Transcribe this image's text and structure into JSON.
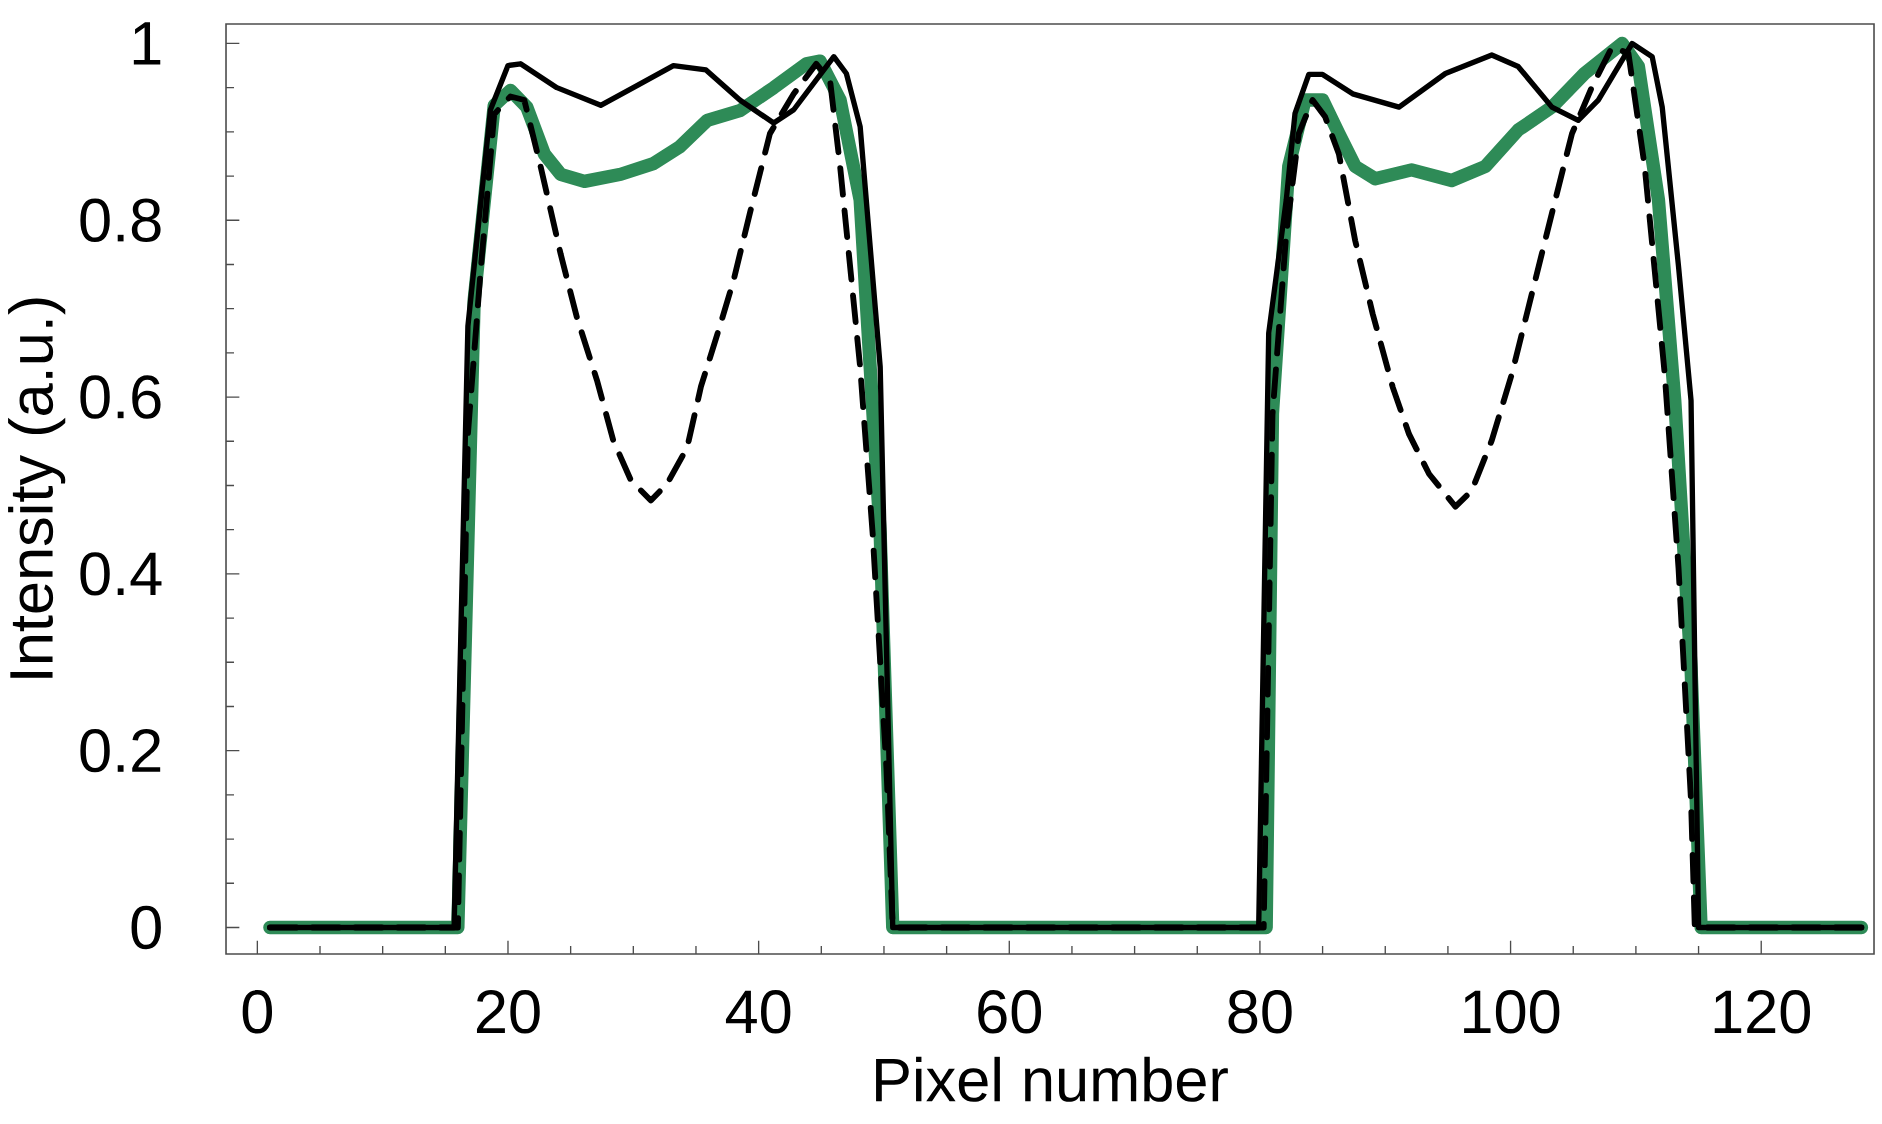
{
  "chart_data": {
    "type": "line",
    "xlabel": "Pixel number",
    "ylabel": "Intensity (a.u.)",
    "xlim": [
      -2.5,
      129
    ],
    "ylim": [
      -0.03,
      1.022
    ],
    "xticks": [
      0,
      20,
      40,
      60,
      80,
      100,
      120
    ],
    "yticks": [
      0,
      0.2,
      0.4,
      0.6,
      0.8,
      1
    ],
    "grid": false,
    "marker": "none",
    "series": [
      {
        "color": "#2e8b57",
        "line_style": "solid",
        "x": [
          1,
          16,
          17.3,
          18.9,
          20.2,
          21.5,
          22.9,
          24.2,
          26.1,
          29,
          31.6,
          33.7,
          35.9,
          38.5,
          41.2,
          43.8,
          44.9,
          46.5,
          48.1,
          49.7,
          50.7,
          80.5,
          81,
          82.3,
          83.6,
          85,
          86.3,
          87.6,
          89.2,
          92.1,
          95.3,
          98,
          100.6,
          103.3,
          105.9,
          108.9,
          110.2,
          111.8,
          113.1,
          114.4,
          115.2,
          128
        ],
        "values": [
          0,
          0,
          0.71,
          0.93,
          0.947,
          0.928,
          0.875,
          0.852,
          0.844,
          0.852,
          0.864,
          0.883,
          0.913,
          0.924,
          0.95,
          0.977,
          0.98,
          0.936,
          0.823,
          0.445,
          0,
          0,
          0.581,
          0.861,
          0.936,
          0.936,
          0.898,
          0.861,
          0.847,
          0.857,
          0.845,
          0.861,
          0.902,
          0.928,
          0.966,
          1.0,
          0.974,
          0.823,
          0.596,
          0.294,
          0,
          0
        ]
      },
      {
        "color": "#000000",
        "line_style": "solid",
        "x": [
          1,
          15.7,
          16.8,
          18.6,
          20,
          21,
          23.9,
          27.4,
          30,
          33.2,
          35.8,
          38.5,
          41.2,
          42.8,
          46,
          47,
          48.1,
          49.7,
          50.7,
          79.9,
          80.7,
          82.1,
          82.8,
          83.9,
          85,
          87.4,
          91.1,
          94.8,
          98.5,
          100.6,
          103.3,
          105.4,
          107,
          109.7,
          111.3,
          112.1,
          113.4,
          114.4,
          115,
          128
        ],
        "values": [
          0,
          0,
          0.68,
          0.925,
          0.975,
          0.977,
          0.95,
          0.93,
          0.95,
          0.975,
          0.97,
          0.936,
          0.91,
          0.925,
          0.985,
          0.966,
          0.906,
          0.634,
          0,
          0,
          0.672,
          0.823,
          0.921,
          0.965,
          0.965,
          0.943,
          0.928,
          0.966,
          0.987,
          0.974,
          0.928,
          0.913,
          0.936,
          1.0,
          0.985,
          0.928,
          0.748,
          0.596,
          0,
          0
        ]
      },
      {
        "color": "#000000",
        "line_style": "dashed",
        "x": [
          1,
          16,
          16.8,
          17.8,
          18.9,
          20.2,
          21.3,
          22.6,
          24.2,
          25.5,
          27.1,
          28.4,
          29.8,
          31.4,
          32.7,
          34.3,
          35.4,
          36.9,
          38,
          39.3,
          40.9,
          42.8,
          44.6,
          45.7,
          46.5,
          48.1,
          49.1,
          50.2,
          50.7,
          80.3,
          81,
          82.1,
          83.1,
          84.2,
          85.2,
          86.3,
          87.6,
          89,
          90.6,
          91.9,
          93.5,
          95.6,
          96.9,
          98.5,
          100.1,
          101.7,
          103.3,
          104.9,
          106.5,
          108.1,
          109.4,
          110.7,
          112.3,
          113.4,
          114.4,
          114.7,
          128
        ],
        "values": [
          0,
          0,
          0.558,
          0.74,
          0.92,
          0.94,
          0.936,
          0.861,
          0.762,
          0.69,
          0.619,
          0.551,
          0.506,
          0.483,
          0.502,
          0.543,
          0.612,
          0.68,
          0.732,
          0.808,
          0.898,
          0.943,
          0.977,
          0.958,
          0.861,
          0.634,
          0.445,
          0.18,
          0,
          0,
          0.58,
          0.785,
          0.898,
          0.936,
          0.917,
          0.875,
          0.777,
          0.694,
          0.611,
          0.558,
          0.513,
          0.476,
          0.494,
          0.551,
          0.626,
          0.717,
          0.808,
          0.898,
          0.951,
          0.996,
          0.989,
          0.861,
          0.626,
          0.407,
          0.143,
          0,
          0
        ]
      }
    ]
  }
}
